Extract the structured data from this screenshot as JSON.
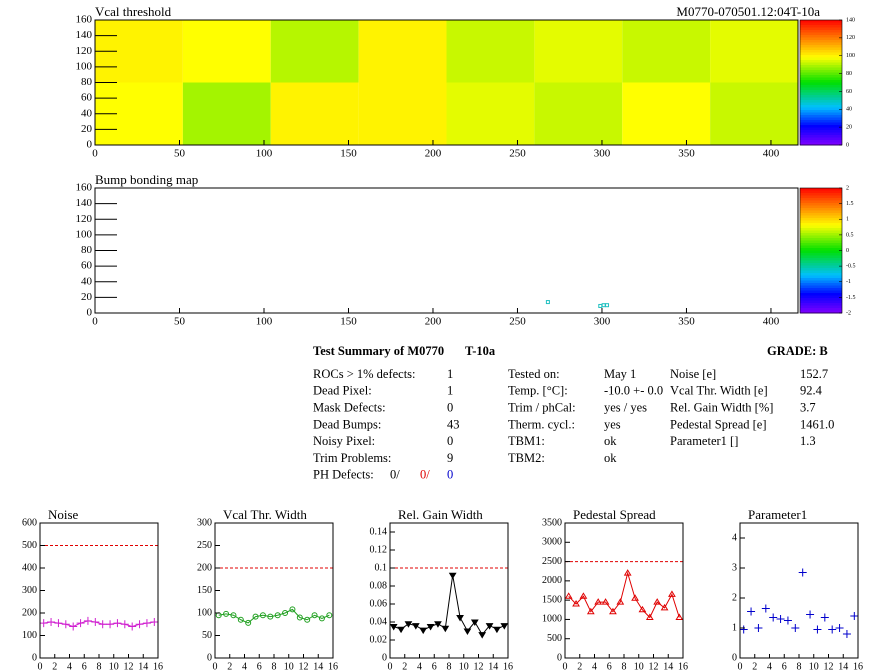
{
  "chart_data": [
    {
      "type": "heatmap",
      "title": "Vcal threshold",
      "subtitle": "M0770-070501.12:04T-10a",
      "xlim": [
        0,
        416
      ],
      "xticks": [
        0,
        50,
        100,
        150,
        200,
        250,
        300,
        350,
        400
      ],
      "ylim": [
        0,
        160
      ],
      "yticks": [
        0,
        20,
        40,
        60,
        80,
        100,
        120,
        140,
        160
      ],
      "zlim": [
        0,
        140
      ],
      "zticks": [
        0,
        20,
        40,
        60,
        80,
        100,
        120,
        140
      ],
      "x_bins": [
        0,
        52,
        104,
        156,
        208,
        260,
        312,
        364,
        416
      ],
      "y_bins": [
        0,
        80,
        160
      ],
      "values": [
        [
          98,
          88,
          100,
          100,
          95,
          92,
          98,
          92
        ],
        [
          100,
          98,
          90,
          100,
          92,
          95,
          92,
          95
        ]
      ]
    },
    {
      "type": "scatter",
      "title": "Bump bonding map",
      "xlim": [
        0,
        416
      ],
      "xticks": [
        0,
        50,
        100,
        150,
        200,
        250,
        300,
        350,
        400
      ],
      "ylim": [
        0,
        160
      ],
      "yticks": [
        0,
        20,
        40,
        60,
        80,
        100,
        120,
        140,
        160
      ],
      "zlim": [
        -2,
        2
      ],
      "zticks": [
        -2,
        -1.5,
        -1,
        -0.5,
        0,
        0.5,
        1,
        1.5,
        2
      ],
      "color": "#20c0c0",
      "x": [
        268,
        299,
        301,
        303
      ],
      "values": [
        14,
        9,
        10,
        10
      ]
    },
    {
      "type": "graph",
      "title": "Noise",
      "color": "#d020d0",
      "marker": "cross",
      "line": true,
      "threshold": 500,
      "xlim": [
        0,
        16
      ],
      "xticks": [
        0,
        2,
        4,
        6,
        8,
        10,
        12,
        14,
        16
      ],
      "ylim": [
        0,
        600
      ],
      "yticks": [
        0,
        100,
        200,
        300,
        400,
        500,
        600
      ],
      "x": [
        0.5,
        1.5,
        2.5,
        3.5,
        4.5,
        5.5,
        6.5,
        7.5,
        8.5,
        9.5,
        10.5,
        11.5,
        12.5,
        13.5,
        14.5,
        15.5
      ],
      "values": [
        155,
        160,
        155,
        150,
        140,
        155,
        165,
        160,
        150,
        150,
        155,
        150,
        140,
        150,
        155,
        160
      ]
    },
    {
      "type": "graph",
      "title": "Vcal Thr. Width",
      "color": "#20a020",
      "marker": "circle",
      "line": true,
      "threshold": 200,
      "xlim": [
        0,
        16
      ],
      "xticks": [
        0,
        2,
        4,
        6,
        8,
        10,
        12,
        14,
        16
      ],
      "ylim": [
        0,
        300
      ],
      "yticks": [
        0,
        50,
        100,
        150,
        200,
        250,
        300
      ],
      "x": [
        0.5,
        1.5,
        2.5,
        3.5,
        4.5,
        5.5,
        6.5,
        7.5,
        8.5,
        9.5,
        10.5,
        11.5,
        12.5,
        13.5,
        14.5,
        15.5
      ],
      "values": [
        95,
        98,
        95,
        85,
        78,
        92,
        95,
        92,
        95,
        100,
        108,
        90,
        85,
        95,
        88,
        95
      ]
    },
    {
      "type": "graph",
      "title": "Rel. Gain Width",
      "color": "#000000",
      "marker": "tri-down",
      "line": true,
      "threshold": 0.1,
      "xlim": [
        0,
        16
      ],
      "xticks": [
        0,
        2,
        4,
        6,
        8,
        10,
        12,
        14,
        16
      ],
      "ylim": [
        0,
        0.15
      ],
      "yticks": [
        0,
        0.02,
        0.04,
        0.06,
        0.08,
        0.1,
        0.12,
        0.14
      ],
      "x": [
        0.5,
        1.5,
        2.5,
        3.5,
        4.5,
        5.5,
        6.5,
        7.5,
        8.5,
        9.5,
        10.5,
        11.5,
        12.5,
        13.5,
        14.5,
        15.5
      ],
      "values": [
        0.035,
        0.032,
        0.038,
        0.036,
        0.031,
        0.035,
        0.038,
        0.033,
        0.092,
        0.045,
        0.03,
        0.04,
        0.026,
        0.036,
        0.032,
        0.036
      ]
    },
    {
      "type": "graph",
      "title": "Pedestal Spread",
      "color": "#e00000",
      "marker": "tri-up",
      "line": true,
      "threshold": 2500,
      "xlim": [
        0,
        16
      ],
      "xticks": [
        0,
        2,
        4,
        6,
        8,
        10,
        12,
        14,
        16
      ],
      "ylim": [
        0,
        3500
      ],
      "yticks": [
        0,
        500,
        1000,
        1500,
        2000,
        2500,
        3000,
        3500
      ],
      "x": [
        0.5,
        1.5,
        2.5,
        3.5,
        4.5,
        5.5,
        6.5,
        7.5,
        8.5,
        9.5,
        10.5,
        11.5,
        12.5,
        13.5,
        14.5,
        15.5
      ],
      "values": [
        1600,
        1400,
        1600,
        1200,
        1450,
        1450,
        1200,
        1450,
        2200,
        1550,
        1250,
        1050,
        1450,
        1300,
        1650,
        1050
      ]
    },
    {
      "type": "graph",
      "title": "Parameter1",
      "color": "#0000cc",
      "marker": "cross",
      "line": false,
      "xlim": [
        0,
        16
      ],
      "xticks": [
        0,
        2,
        4,
        6,
        8,
        10,
        12,
        14,
        16
      ],
      "ylim": [
        0,
        4.5
      ],
      "yticks": [
        0,
        1,
        2,
        3,
        4
      ],
      "x": [
        0.5,
        1.5,
        2.5,
        3.5,
        4.5,
        5.5,
        6.5,
        7.5,
        8.5,
        9.5,
        10.5,
        11.5,
        12.5,
        13.5,
        14.5,
        15.5
      ],
      "values": [
        0.95,
        1.55,
        1.0,
        1.65,
        1.35,
        1.3,
        1.25,
        1.0,
        2.85,
        1.45,
        0.95,
        1.35,
        0.95,
        1.0,
        0.8,
        1.4
      ]
    }
  ],
  "summary": {
    "title": "Test Summary of M0770",
    "tag": "T-10a",
    "grade": "GRADE:  B",
    "left": [
      [
        "ROCs > 1% defects:",
        "1"
      ],
      [
        "Dead Pixel:",
        "1"
      ],
      [
        "Mask Defects:",
        "0"
      ],
      [
        "Dead Bumps:",
        "43"
      ],
      [
        "Noisy Pixel:",
        "0"
      ],
      [
        "Trim Problems:",
        "9"
      ]
    ],
    "ph_defects": {
      "label": "PH Defects:",
      "values": [
        "0/",
        "0/",
        "0"
      ]
    },
    "middle": [
      [
        "Tested on:",
        "May 1"
      ],
      [
        "Temp. [°C]:",
        "-10.0 +- 0.0"
      ],
      [
        "Trim / phCal:",
        "yes / yes"
      ],
      [
        "Therm. cycl.:",
        "yes"
      ],
      [
        "TBM1:",
        "ok"
      ],
      [
        "TBM2:",
        "ok"
      ]
    ],
    "right": [
      [
        "Noise [e]",
        "152.7"
      ],
      [
        "Vcal Thr. Width [e]",
        "92.4"
      ],
      [
        "Rel. Gain Width [%]",
        "3.7"
      ],
      [
        "Pedestal Spread [e]",
        "1461.0"
      ],
      [
        "Parameter1 []",
        "1.3"
      ]
    ]
  }
}
